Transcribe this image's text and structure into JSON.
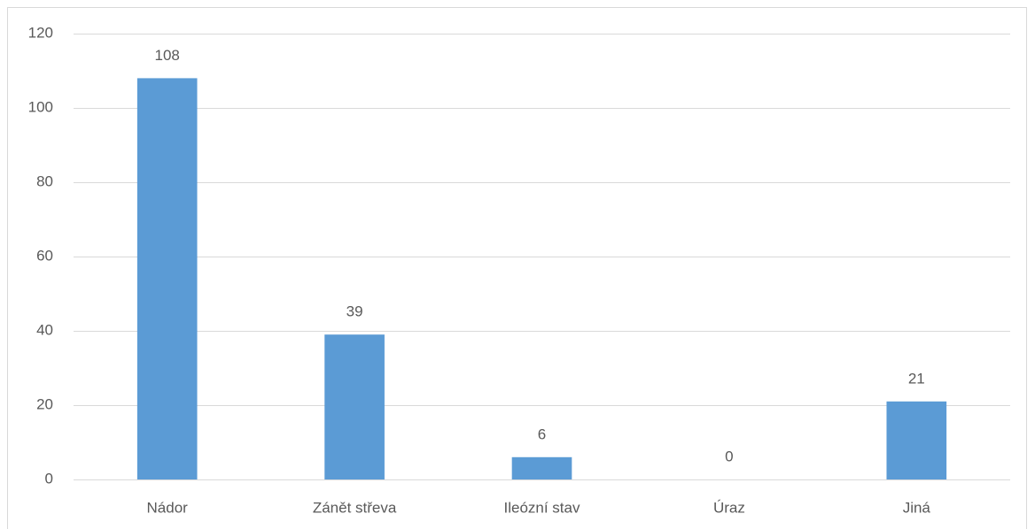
{
  "chart_data": {
    "type": "bar",
    "categories": [
      "Nádor",
      "Zánět střeva",
      "Ileózní stav",
      "Úraz",
      "Jiná"
    ],
    "values": [
      108,
      39,
      6,
      0,
      21
    ],
    "color": "#5b9bd5",
    "ylim": [
      0,
      120
    ],
    "yticks": [
      0,
      20,
      40,
      60,
      80,
      100,
      120
    ],
    "grid": true
  }
}
